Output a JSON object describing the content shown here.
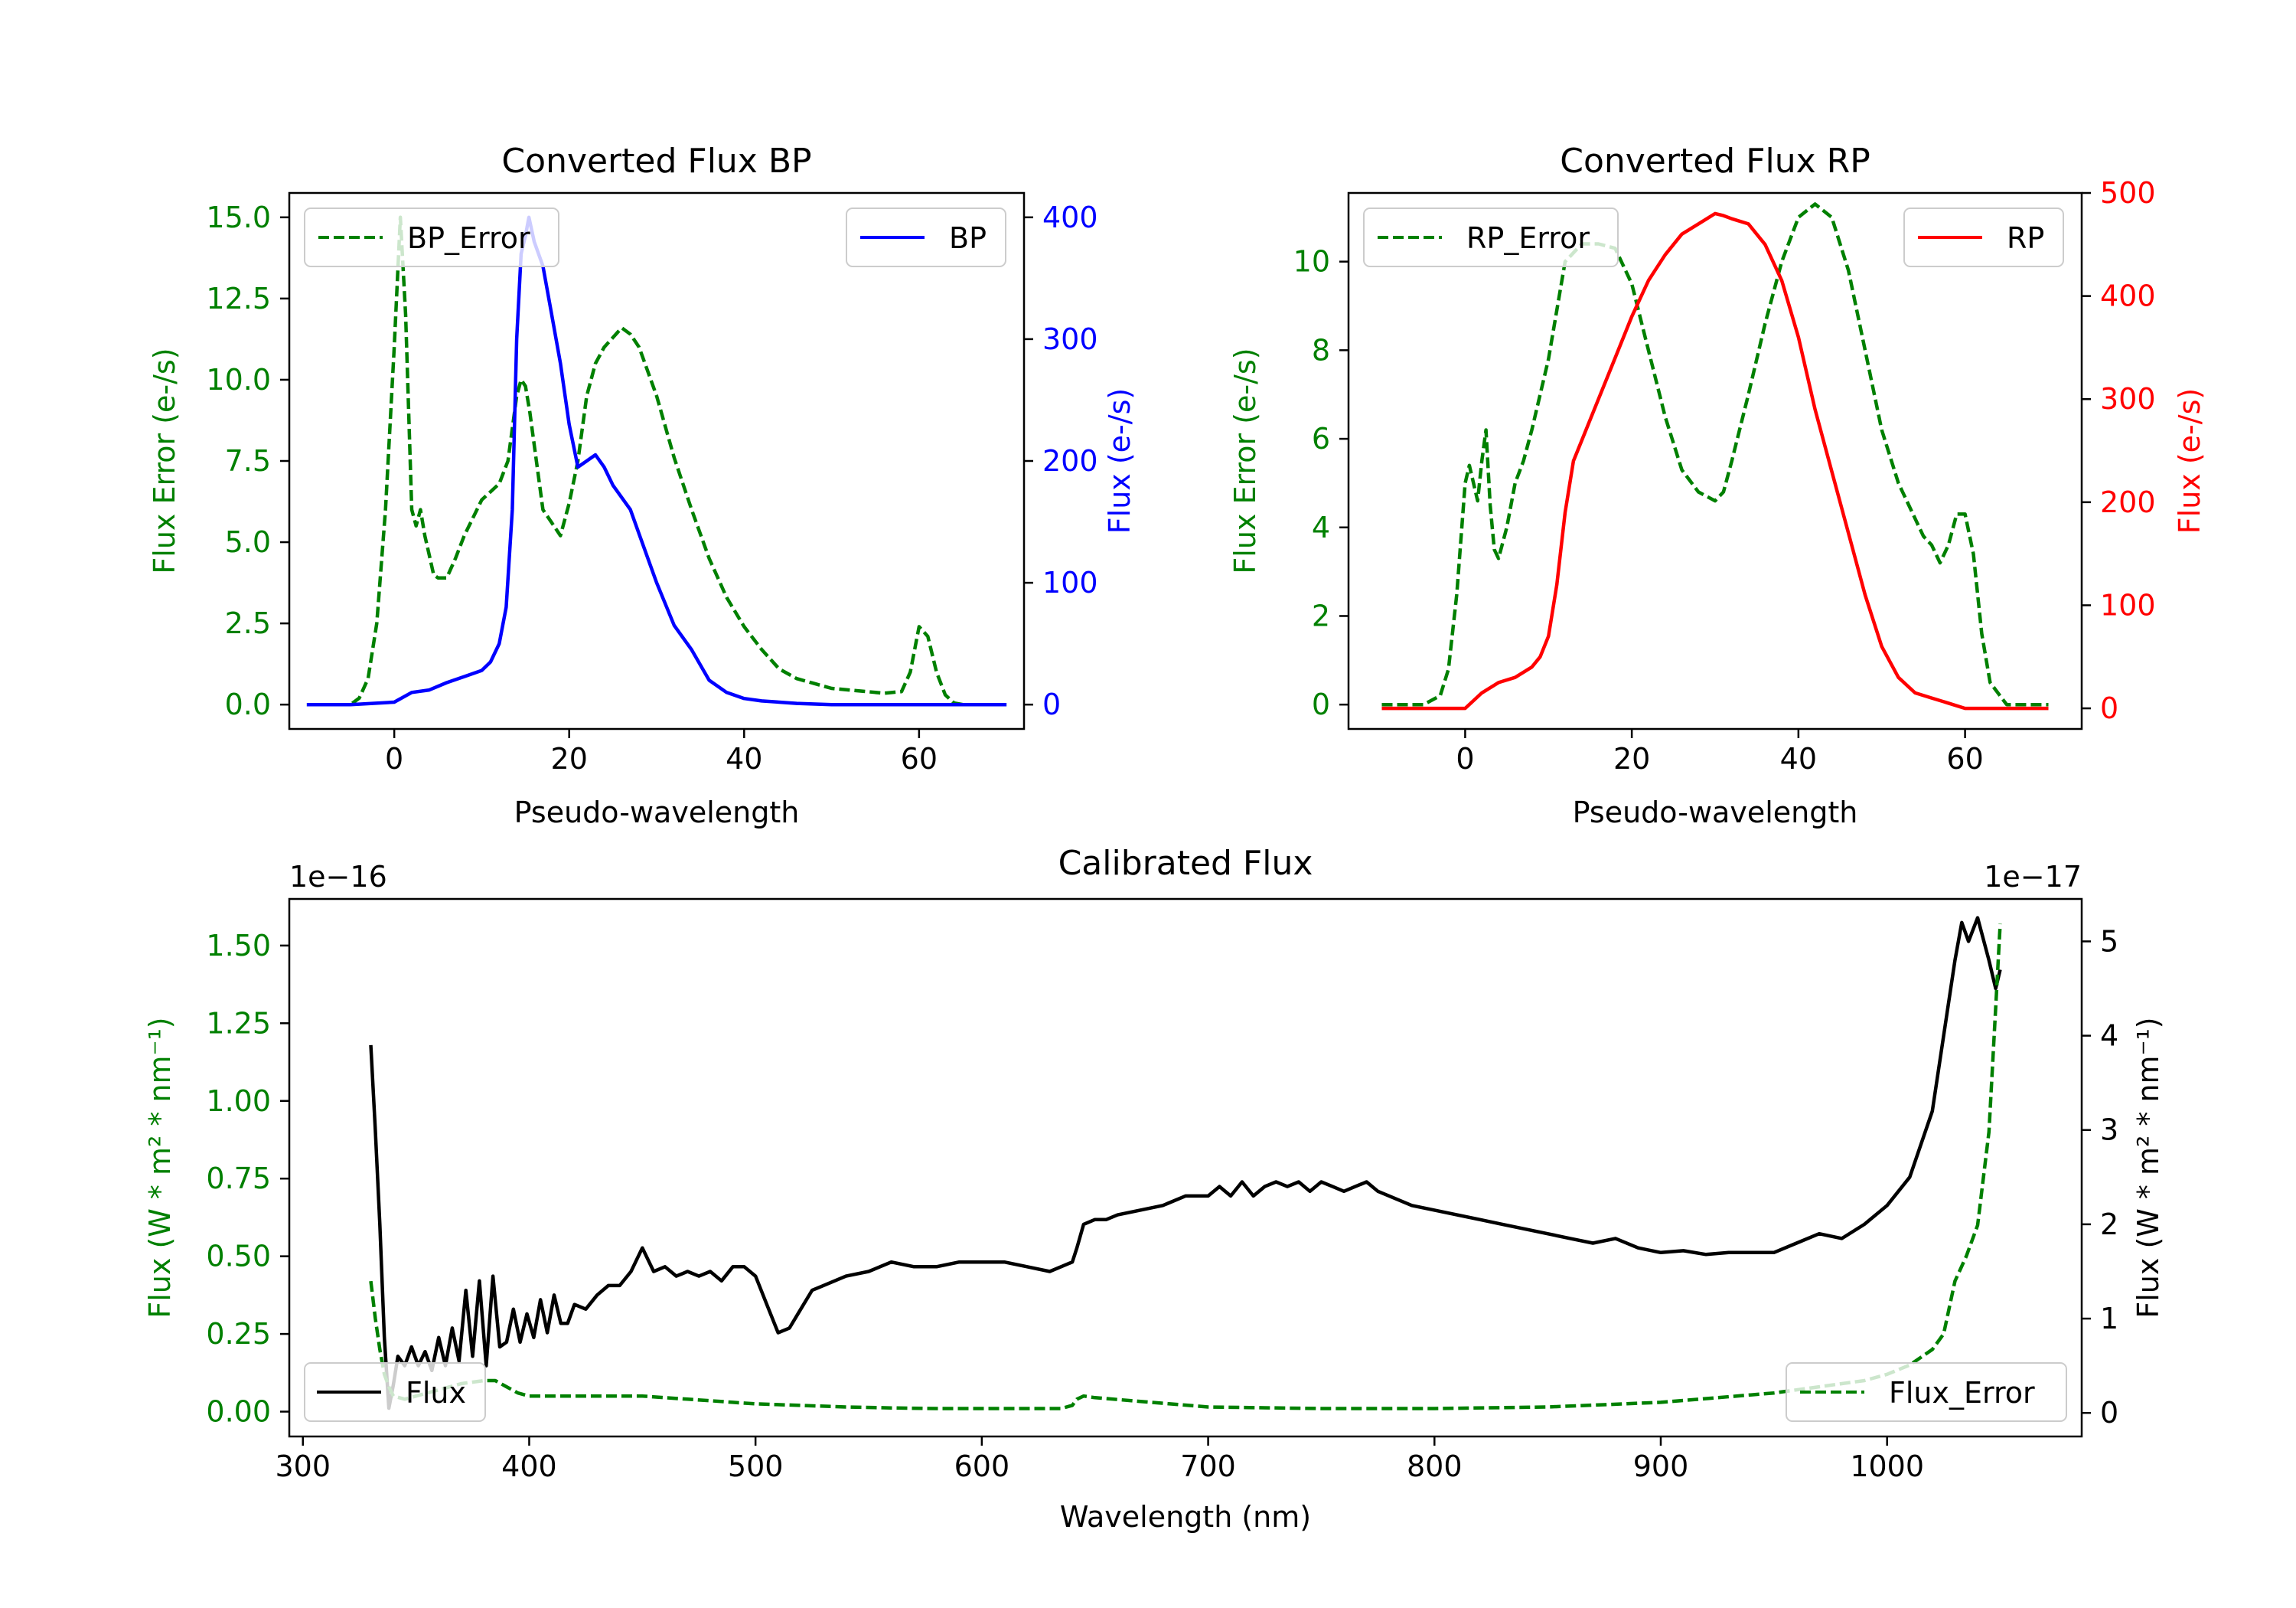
{
  "chart_data": [
    {
      "type": "line",
      "title": "Converted Flux BP",
      "xlabel": "Pseudo-wavelength",
      "ylabel_left": "Flux Error (e-/s)",
      "ylabel_right": "Flux (e-/s)",
      "xlim": [
        -12,
        72
      ],
      "ylim_left": [
        -0.75,
        15.75
      ],
      "ylim_right": [
        -20,
        420
      ],
      "xticks": [
        "0",
        "20",
        "40",
        "60"
      ],
      "yticks_left": [
        "0.0",
        "2.5",
        "5.0",
        "7.5",
        "10.0",
        "12.5",
        "15.0"
      ],
      "yticks_right": [
        "0",
        "100",
        "200",
        "300",
        "400"
      ],
      "colors": {
        "left": "#008000",
        "right": "#0000ff"
      },
      "legend_left": "BP_Error",
      "legend_right": "BP",
      "series": [
        {
          "name": "BP_Error",
          "axis": "left",
          "style": "dashed",
          "x": [
            -10,
            -5,
            -4,
            -3,
            -2,
            -1,
            0,
            0.7,
            1.3,
            2,
            2.5,
            3,
            3.5,
            4,
            4.5,
            5,
            6,
            7,
            8,
            10,
            12,
            13,
            13.5,
            14,
            14.5,
            15,
            15.5,
            16,
            17,
            18,
            19,
            20,
            21,
            22,
            23,
            24,
            25,
            26,
            27,
            28,
            30,
            32,
            34,
            36,
            38,
            40,
            42,
            44,
            46,
            48,
            50,
            52,
            54,
            56,
            58,
            59,
            60,
            61,
            62,
            63,
            64,
            65,
            70
          ],
          "y": [
            0,
            0,
            0.2,
            0.8,
            2.5,
            6,
            11,
            15,
            12,
            6,
            5.5,
            6,
            5.2,
            4.6,
            4,
            3.9,
            3.9,
            4.5,
            5.2,
            6.3,
            6.8,
            7.5,
            8.5,
            9.5,
            10,
            9.8,
            9,
            8,
            6,
            5.6,
            5.2,
            6.2,
            7.5,
            9.5,
            10.5,
            11,
            11.3,
            11.6,
            11.4,
            11,
            9.5,
            7.6,
            6,
            4.5,
            3.3,
            2.4,
            1.7,
            1.1,
            0.8,
            0.65,
            0.5,
            0.45,
            0.4,
            0.35,
            0.4,
            1,
            2.4,
            2.1,
            1,
            0.3,
            0.05,
            0,
            0
          ]
        },
        {
          "name": "BP",
          "axis": "right",
          "style": "solid",
          "x": [
            -10,
            -5,
            0,
            2,
            4,
            6,
            8,
            10,
            11,
            12,
            12.8,
            13.5,
            14,
            14.5,
            15,
            15.4,
            16,
            17,
            18,
            19,
            20,
            21,
            22,
            23,
            24,
            25,
            26,
            27,
            28,
            30,
            32,
            34,
            36,
            38,
            40,
            42,
            44,
            46,
            50,
            55,
            60,
            65,
            70
          ],
          "y": [
            0,
            0,
            2,
            10,
            12,
            18,
            23,
            28,
            35,
            50,
            80,
            160,
            300,
            370,
            385,
            400,
            380,
            360,
            320,
            280,
            230,
            195,
            200,
            205,
            195,
            180,
            170,
            160,
            140,
            100,
            65,
            45,
            20,
            10,
            5,
            3,
            2,
            1,
            0,
            0,
            0,
            0,
            0
          ]
        }
      ]
    },
    {
      "type": "line",
      "title": "Converted Flux RP",
      "xlabel": "Pseudo-wavelength",
      "ylabel_left": "Flux Error (e-/s)",
      "ylabel_right": "Flux (e-/s)",
      "xlim": [
        -14,
        74
      ],
      "ylim_left": [
        -0.55,
        11.55
      ],
      "ylim_right": [
        -20,
        500
      ],
      "xticks": [
        "0",
        "20",
        "40",
        "60"
      ],
      "yticks_left": [
        "0",
        "2",
        "4",
        "6",
        "8",
        "10"
      ],
      "yticks_right": [
        "0",
        "100",
        "200",
        "300",
        "400",
        "500"
      ],
      "colors": {
        "left": "#008000",
        "right": "#ff0000"
      },
      "legend_left": "RP_Error",
      "legend_right": "RP",
      "series": [
        {
          "name": "RP_Error",
          "axis": "left",
          "style": "dashed",
          "x": [
            -10,
            -5,
            -3,
            -2,
            -1,
            0,
            0.5,
            1,
            1.5,
            2,
            2.5,
            3,
            3.5,
            4,
            5,
            6,
            7,
            8,
            10,
            12,
            14,
            16,
            18,
            20,
            22,
            24,
            26,
            28,
            30,
            31,
            32,
            34,
            36,
            38,
            40,
            42,
            44,
            46,
            48,
            50,
            52,
            54,
            55,
            56,
            57,
            58,
            59,
            60,
            61,
            62,
            63,
            65,
            70
          ],
          "y": [
            0,
            0,
            0.2,
            0.8,
            2.5,
            5,
            5.4,
            5,
            4.6,
            5.5,
            6.2,
            4.5,
            3.5,
            3.3,
            4,
            5,
            5.5,
            6.2,
            7.8,
            10,
            10.4,
            10.4,
            10.3,
            9.5,
            8,
            6.5,
            5.3,
            4.8,
            4.6,
            4.8,
            5.5,
            7,
            8.6,
            10,
            11,
            11.3,
            11,
            9.8,
            8,
            6.2,
            5,
            4.2,
            3.8,
            3.6,
            3.2,
            3.6,
            4.3,
            4.3,
            3.4,
            1.6,
            0.5,
            0,
            0
          ]
        },
        {
          "name": "RP",
          "axis": "right",
          "style": "solid",
          "x": [
            -10,
            -5,
            0,
            2,
            4,
            6,
            8,
            9,
            10,
            11,
            12,
            13,
            14,
            16,
            18,
            20,
            22,
            24,
            26,
            28,
            29,
            30,
            31,
            32,
            34,
            36,
            38,
            40,
            42,
            44,
            46,
            48,
            50,
            52,
            54,
            56,
            58,
            60,
            62,
            65,
            70
          ],
          "y": [
            0,
            0,
            0,
            15,
            25,
            30,
            40,
            50,
            70,
            120,
            190,
            240,
            260,
            300,
            340,
            380,
            415,
            440,
            460,
            470,
            475,
            480,
            478,
            475,
            470,
            450,
            415,
            360,
            290,
            230,
            170,
            110,
            60,
            30,
            15,
            10,
            5,
            0,
            0,
            0,
            0
          ]
        }
      ]
    },
    {
      "type": "line",
      "title": "Calibrated Flux",
      "xlabel": "Wavelength (nm)",
      "ylabel_left": "Flux (W * m² * nm⁻¹)",
      "ylabel_right": "Flux (W * m² * nm⁻¹)",
      "offset_left": "1e−16",
      "offset_right": "1e−17",
      "xlim": [
        294,
        1086
      ],
      "ylim_left": [
        -0.08,
        1.65
      ],
      "ylim_right": [
        -0.25,
        5.45
      ],
      "xticks": [
        "300",
        "400",
        "500",
        "600",
        "700",
        "800",
        "900",
        "1000"
      ],
      "yticks_left": [
        "0.00",
        "0.25",
        "0.50",
        "0.75",
        "1.00",
        "1.25",
        "1.50"
      ],
      "yticks_right": [
        "0",
        "1",
        "2",
        "3",
        "4",
        "5"
      ],
      "colors": {
        "left": "#008000",
        "right": "#000000"
      },
      "legend_left": "Flux",
      "legend_right": "Flux_Error",
      "series": [
        {
          "name": "Flux",
          "axis": "right",
          "style": "solid",
          "x": [
            330,
            332,
            334,
            336,
            338,
            340,
            342,
            345,
            348,
            351,
            354,
            357,
            360,
            363,
            366,
            369,
            372,
            375,
            378,
            381,
            384,
            387,
            390,
            393,
            396,
            399,
            402,
            405,
            408,
            411,
            414,
            417,
            420,
            425,
            430,
            435,
            440,
            445,
            450,
            455,
            460,
            465,
            470,
            475,
            480,
            485,
            490,
            495,
            500,
            505,
            510,
            515,
            520,
            525,
            530,
            540,
            550,
            560,
            570,
            580,
            590,
            600,
            610,
            620,
            630,
            640,
            642,
            645,
            650,
            655,
            660,
            670,
            680,
            690,
            700,
            705,
            710,
            715,
            720,
            725,
            730,
            735,
            740,
            745,
            750,
            755,
            760,
            765,
            770,
            775,
            780,
            790,
            800,
            810,
            820,
            830,
            840,
            850,
            860,
            870,
            880,
            890,
            900,
            910,
            920,
            930,
            940,
            950,
            960,
            970,
            980,
            990,
            1000,
            1010,
            1020,
            1025,
            1030,
            1033,
            1036,
            1040,
            1045,
            1048,
            1050
          ],
          "y": [
            3.9,
            3.0,
            2.0,
            0.8,
            0.05,
            0.3,
            0.6,
            0.5,
            0.7,
            0.5,
            0.65,
            0.45,
            0.8,
            0.5,
            0.9,
            0.55,
            1.3,
            0.6,
            1.4,
            0.5,
            1.45,
            0.7,
            0.75,
            1.1,
            0.75,
            1.05,
            0.8,
            1.2,
            0.85,
            1.25,
            0.95,
            0.95,
            1.15,
            1.1,
            1.25,
            1.35,
            1.35,
            1.5,
            1.75,
            1.5,
            1.55,
            1.45,
            1.5,
            1.45,
            1.5,
            1.4,
            1.55,
            1.55,
            1.45,
            1.15,
            0.85,
            0.9,
            1.1,
            1.3,
            1.35,
            1.45,
            1.5,
            1.6,
            1.55,
            1.55,
            1.6,
            1.6,
            1.6,
            1.55,
            1.5,
            1.6,
            1.75,
            2.0,
            2.05,
            2.05,
            2.1,
            2.15,
            2.2,
            2.3,
            2.3,
            2.4,
            2.3,
            2.45,
            2.3,
            2.4,
            2.45,
            2.4,
            2.45,
            2.35,
            2.45,
            2.4,
            2.35,
            2.4,
            2.45,
            2.35,
            2.3,
            2.2,
            2.15,
            2.1,
            2.05,
            2.0,
            1.95,
            1.9,
            1.85,
            1.8,
            1.85,
            1.75,
            1.7,
            1.72,
            1.68,
            1.7,
            1.7,
            1.7,
            1.8,
            1.9,
            1.85,
            2.0,
            2.2,
            2.5,
            3.2,
            4.0,
            4.8,
            5.2,
            5.0,
            5.25,
            4.8,
            4.5,
            4.7
          ]
        },
        {
          "name": "Flux_Error",
          "axis": "left",
          "style": "dashed",
          "x": [
            330,
            332,
            334,
            336,
            338,
            340,
            345,
            350,
            360,
            370,
            380,
            385,
            390,
            395,
            400,
            410,
            420,
            430,
            440,
            450,
            460,
            470,
            480,
            490,
            500,
            520,
            540,
            560,
            580,
            600,
            620,
            635,
            640,
            642,
            645,
            650,
            700,
            750,
            800,
            850,
            900,
            950,
            970,
            980,
            990,
            1000,
            1010,
            1020,
            1025,
            1030,
            1035,
            1040,
            1045,
            1048,
            1050
          ],
          "y": [
            0.42,
            0.3,
            0.2,
            0.12,
            0.08,
            0.05,
            0.04,
            0.05,
            0.07,
            0.09,
            0.1,
            0.1,
            0.08,
            0.06,
            0.05,
            0.05,
            0.05,
            0.05,
            0.05,
            0.05,
            0.045,
            0.04,
            0.035,
            0.03,
            0.025,
            0.02,
            0.015,
            0.012,
            0.01,
            0.01,
            0.01,
            0.01,
            0.02,
            0.04,
            0.05,
            0.045,
            0.015,
            0.01,
            0.01,
            0.015,
            0.03,
            0.06,
            0.08,
            0.09,
            0.1,
            0.12,
            0.15,
            0.2,
            0.25,
            0.42,
            0.5,
            0.6,
            0.9,
            1.3,
            1.57
          ]
        }
      ]
    }
  ]
}
